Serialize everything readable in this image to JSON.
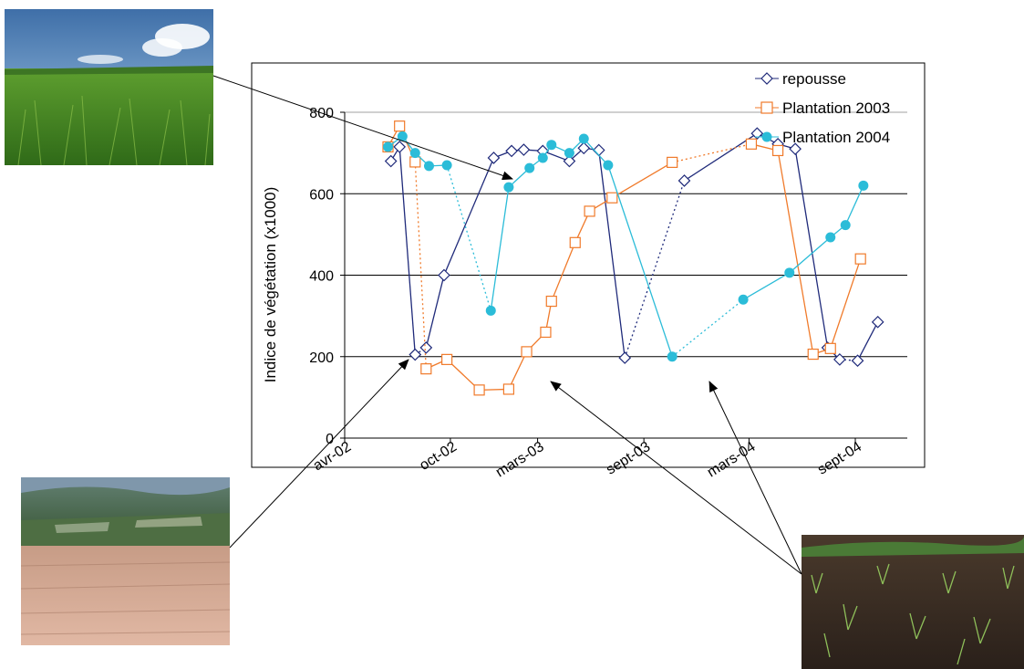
{
  "chart_data": {
    "type": "line",
    "title": "",
    "xlabel": "",
    "ylabel": "Indice de végétation (x1000)",
    "ylim": [
      0,
      800
    ],
    "yticks": [
      0,
      200,
      400,
      600,
      800
    ],
    "xlim": [
      "2002-04-01",
      "2004-11-30"
    ],
    "xticks": [
      {
        "date": "2002-04-01",
        "label": "avr-02"
      },
      {
        "date": "2002-10-01",
        "label": "oct-02"
      },
      {
        "date": "2003-03-01",
        "label": "mars-03"
      },
      {
        "date": "2003-09-01",
        "label": "sept-03"
      },
      {
        "date": "2004-03-01",
        "label": "mars-04"
      },
      {
        "date": "2004-09-01",
        "label": "sept-04"
      }
    ],
    "grid": "horizontal",
    "legend_position": "top-right",
    "series": [
      {
        "name": "repousse",
        "color": "#1f2a7a",
        "marker": "diamond",
        "dashed_segments": [
          2,
          12,
          18
        ],
        "points": [
          [
            "2002-06-20",
            680
          ],
          [
            "2002-07-05",
            715
          ],
          [
            "2002-08-01",
            205
          ],
          [
            "2002-08-20",
            222
          ],
          [
            "2002-09-20",
            400
          ],
          [
            "2002-12-15",
            688
          ],
          [
            "2003-01-15",
            705
          ],
          [
            "2003-02-05",
            708
          ],
          [
            "2003-03-10",
            705
          ],
          [
            "2003-04-25",
            680
          ],
          [
            "2003-05-20",
            712
          ],
          [
            "2003-06-15",
            707
          ],
          [
            "2003-07-30",
            197
          ],
          [
            "2003-11-10",
            632
          ],
          [
            "2004-03-15",
            748
          ],
          [
            "2004-04-20",
            722
          ],
          [
            "2004-05-20",
            710
          ],
          [
            "2004-07-15",
            222
          ],
          [
            "2004-08-05",
            193
          ],
          [
            "2004-09-05",
            190
          ],
          [
            "2004-10-10",
            285
          ]
        ]
      },
      {
        "name": "Plantation 2003",
        "color": "#f07a2a",
        "marker": "square",
        "dashed_segments": [
          2,
          13
        ],
        "points": [
          [
            "2002-06-15",
            715
          ],
          [
            "2002-07-05",
            766
          ],
          [
            "2002-08-01",
            678
          ],
          [
            "2002-08-20",
            170
          ],
          [
            "2002-09-25",
            193
          ],
          [
            "2002-11-20",
            118
          ],
          [
            "2003-01-10",
            120
          ],
          [
            "2003-02-10",
            212
          ],
          [
            "2003-03-15",
            260
          ],
          [
            "2003-03-25",
            336
          ],
          [
            "2003-05-05",
            480
          ],
          [
            "2003-05-30",
            557
          ],
          [
            "2003-07-08",
            590
          ],
          [
            "2003-10-20",
            677
          ],
          [
            "2004-03-05",
            722
          ],
          [
            "2004-04-20",
            706
          ],
          [
            "2004-06-20",
            206
          ],
          [
            "2004-07-20",
            220
          ],
          [
            "2004-09-10",
            440
          ]
        ]
      },
      {
        "name": "Plantation 2004",
        "color": "#2bbcd8",
        "marker": "circle",
        "dashed_segments": [
          4,
          13
        ],
        "points": [
          [
            "2002-06-15",
            715
          ],
          [
            "2002-07-10",
            741
          ],
          [
            "2002-08-01",
            700
          ],
          [
            "2002-08-25",
            668
          ],
          [
            "2002-09-25",
            670
          ],
          [
            "2002-12-10",
            313
          ],
          [
            "2003-01-10",
            616
          ],
          [
            "2003-02-15",
            663
          ],
          [
            "2003-03-10",
            688
          ],
          [
            "2003-03-25",
            720
          ],
          [
            "2003-04-25",
            700
          ],
          [
            "2003-05-20",
            735
          ],
          [
            "2003-07-01",
            670
          ],
          [
            "2003-10-20",
            200
          ],
          [
            "2004-02-20",
            340
          ],
          [
            "2004-05-10",
            406
          ],
          [
            "2004-07-20",
            493
          ],
          [
            "2004-08-15",
            523
          ],
          [
            "2004-09-15",
            620
          ]
        ]
      }
    ]
  },
  "photos": [
    {
      "name": "photo-mature-cane",
      "sky": "#8db6dc",
      "ground": "#4f8a2a"
    },
    {
      "name": "photo-harvested-field",
      "sky": "#6f8aa3",
      "ground": "#caa48f"
    },
    {
      "name": "photo-young-cane",
      "sky": "#ffffff",
      "ground": "#3e3128"
    }
  ]
}
